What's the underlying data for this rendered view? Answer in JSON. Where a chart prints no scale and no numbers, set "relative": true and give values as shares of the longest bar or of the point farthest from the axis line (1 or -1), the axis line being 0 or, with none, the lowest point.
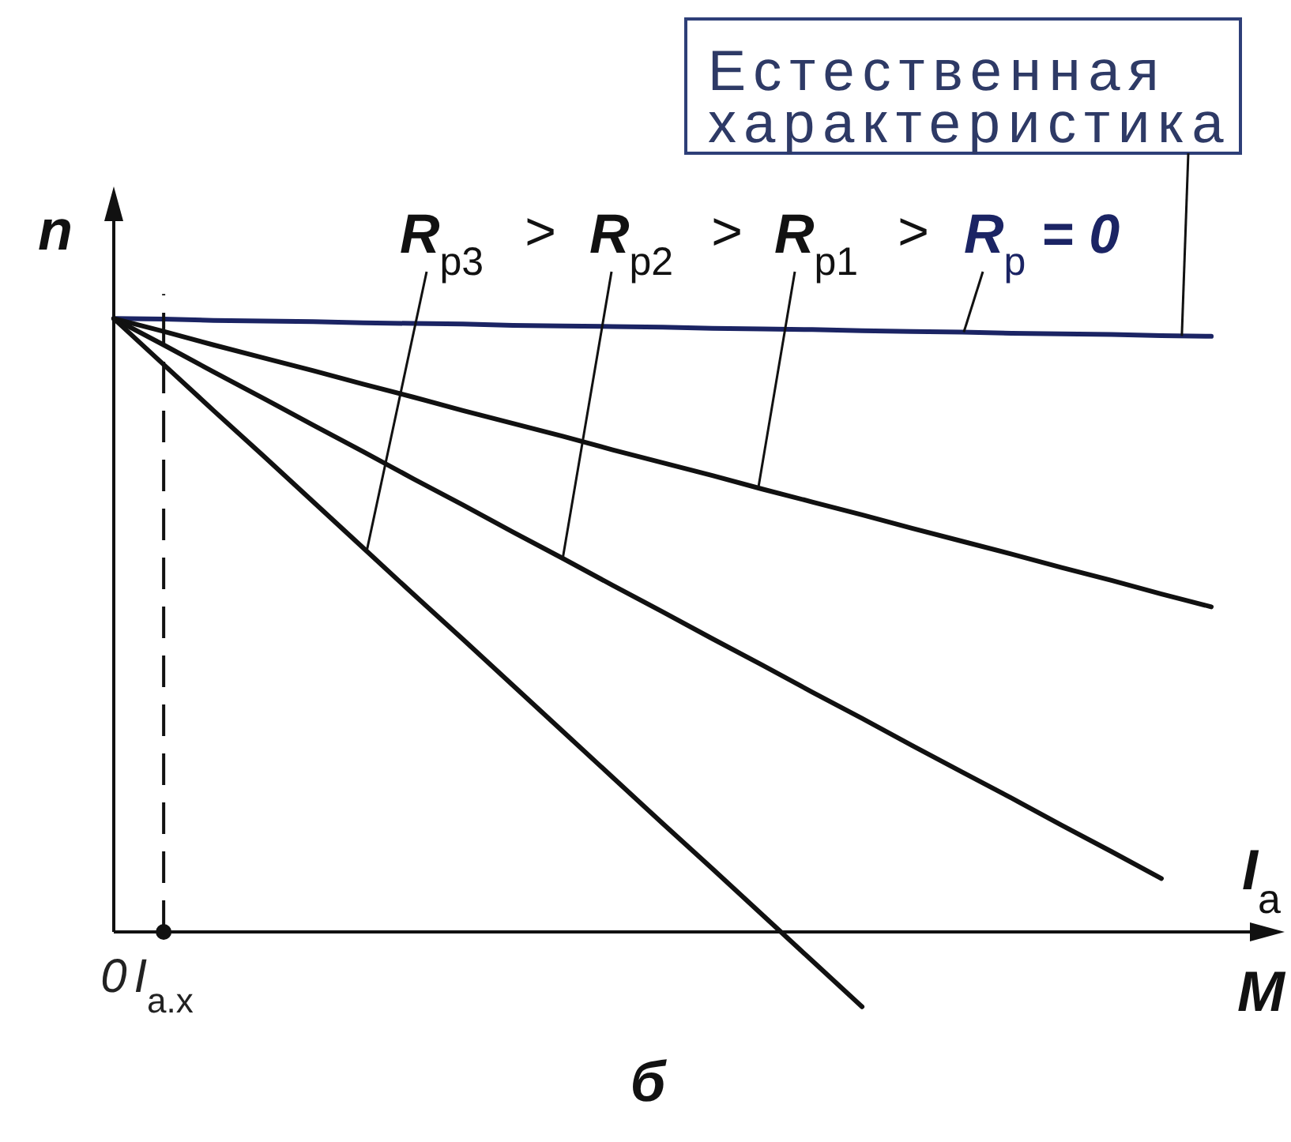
{
  "chart_data": {
    "type": "line",
    "relative": true,
    "marker": "none",
    "line_style": "solid",
    "tick_labels": "x",
    "categories": [
      "0",
      "I$_{a.x}$",
      null,
      null,
      null,
      null,
      null,
      null,
      null,
      null,
      null,
      null,
      null,
      null,
      null,
      null,
      null,
      null,
      null,
      null,
      null,
      null,
      null
    ],
    "xlabel": "M",
    "ylabel": "n",
    "series": [
      {
        "name": "R$_{p}$ = 0",
        "color": "#1b2464",
        "values": [
          1.0,
          0.999,
          0.997,
          0.996,
          0.995,
          0.993,
          0.992,
          0.991,
          0.989,
          0.988,
          0.987,
          0.986,
          0.984,
          0.983,
          0.982,
          0.98,
          0.979,
          0.978,
          0.976,
          0.975,
          0.974,
          0.972,
          0.971
        ]
      },
      {
        "name": "R$_{p1}$",
        "color": "#111111",
        "values": [
          1.0,
          0.979,
          0.957,
          0.936,
          0.915,
          0.893,
          0.872,
          0.85,
          0.829,
          0.808,
          0.786,
          0.765,
          0.744,
          0.722,
          0.701,
          0.68,
          0.658,
          0.637,
          0.616,
          0.594,
          0.573,
          0.551,
          0.53
        ]
      },
      {
        "name": "R$_{p2}$",
        "color": "#111111",
        "values": [
          1.0,
          0.957,
          0.913,
          0.87,
          0.826,
          0.783,
          0.739,
          0.696,
          0.652,
          0.609,
          0.565,
          0.522,
          0.478,
          0.435,
          0.391,
          0.348,
          0.304,
          0.261,
          0.218,
          0.174,
          0.131,
          0.087,
          null
        ]
      },
      {
        "name": "R$_{p3}$",
        "color": "#111111",
        "values": [
          1.0,
          0.925,
          0.85,
          0.776,
          0.701,
          0.626,
          0.551,
          0.477,
          0.402,
          0.327,
          0.252,
          0.177,
          0.103,
          0.028,
          -0.047,
          -0.122,
          null,
          null,
          null,
          null,
          null,
          null,
          null
        ]
      }
    ],
    "ref_lines": [
      {
        "axis": "x",
        "value": "I$_{a.x}$",
        "color": "#111111",
        "line_style": "dashed"
      }
    ],
    "annotations": [
      "Естественная характеристика",
      "I$_{a}$",
      ">",
      ">",
      ">",
      "б"
    ]
  }
}
